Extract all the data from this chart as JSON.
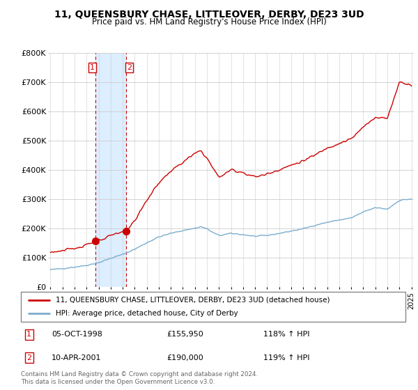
{
  "title": "11, QUEENSBURY CHASE, LITTLEOVER, DERBY, DE23 3UD",
  "subtitle": "Price paid vs. HM Land Registry's House Price Index (HPI)",
  "legend_line1": "11, QUEENSBURY CHASE, LITTLEOVER, DERBY, DE23 3UD (detached house)",
  "legend_line2": "HPI: Average price, detached house, City of Derby",
  "footer": "Contains HM Land Registry data © Crown copyright and database right 2024.\nThis data is licensed under the Open Government Licence v3.0.",
  "sale1_label": "1",
  "sale1_date": "05-OCT-1998",
  "sale1_price": "£155,950",
  "sale1_hpi": "118% ↑ HPI",
  "sale2_label": "2",
  "sale2_date": "10-APR-2001",
  "sale2_price": "£190,000",
  "sale2_hpi": "119% ↑ HPI",
  "red_color": "#cc0000",
  "blue_color": "#7aadce",
  "shade_color": "#ddeeff",
  "vline_color": "#cc0000",
  "ylim": [
    0,
    800000
  ],
  "yticks": [
    0,
    100000,
    200000,
    300000,
    400000,
    500000,
    600000,
    700000,
    800000
  ],
  "ytick_labels": [
    "£0",
    "£100K",
    "£200K",
    "£300K",
    "£400K",
    "£500K",
    "£600K",
    "£700K",
    "£800K"
  ],
  "sale1_x": 1998.75,
  "sale2_x": 2001.27,
  "sale1_y": 155950,
  "sale2_y": 190000,
  "xmin": 1994.8,
  "xmax": 2025.2
}
